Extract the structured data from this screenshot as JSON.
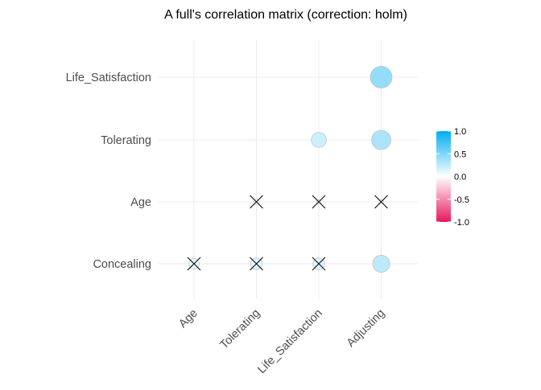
{
  "chart_data": {
    "type": "correlation-matrix",
    "title": "A full's correlation matrix (correction: holm)",
    "x_labels": [
      "Age",
      "Tolerating",
      "Life_Satisfaction",
      "Adjusting"
    ],
    "y_labels": [
      "Concealing",
      "Age",
      "Tolerating",
      "Life_Satisfaction"
    ],
    "cells": [
      {
        "x": "Adjusting",
        "y": "Life_Satisfaction",
        "r": 0.42,
        "significant": true
      },
      {
        "x": "Life_Satisfaction",
        "y": "Tolerating",
        "r": 0.2,
        "significant": true
      },
      {
        "x": "Adjusting",
        "y": "Tolerating",
        "r": 0.33,
        "significant": true
      },
      {
        "x": "Tolerating",
        "y": "Age",
        "r": 0.03,
        "significant": false
      },
      {
        "x": "Life_Satisfaction",
        "y": "Age",
        "r": 0.02,
        "significant": false
      },
      {
        "x": "Adjusting",
        "y": "Age",
        "r": -0.02,
        "significant": false
      },
      {
        "x": "Age",
        "y": "Concealing",
        "r": 0.1,
        "significant": false
      },
      {
        "x": "Tolerating",
        "y": "Concealing",
        "r": 0.12,
        "significant": false
      },
      {
        "x": "Life_Satisfaction",
        "y": "Concealing",
        "r": 0.12,
        "significant": false
      },
      {
        "x": "Adjusting",
        "y": "Concealing",
        "r": 0.26,
        "significant": true
      }
    ],
    "legend": {
      "range": [
        -1.0,
        1.0
      ],
      "ticks": [
        "1.0",
        "0.5",
        "0.0",
        "-0.5",
        "-1.0"
      ],
      "tick_values": [
        1.0,
        0.5,
        0.0,
        -0.5,
        -1.0
      ],
      "colors": {
        "low": "#e8175d",
        "mid": "#ffffff",
        "high": "#00aeef"
      }
    }
  }
}
